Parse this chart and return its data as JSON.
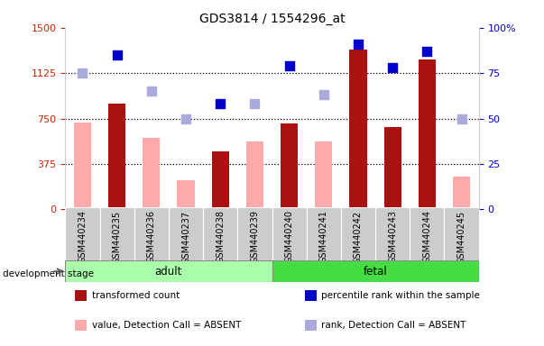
{
  "title": "GDS3814 / 1554296_at",
  "samples": [
    "GSM440234",
    "GSM440235",
    "GSM440236",
    "GSM440237",
    "GSM440238",
    "GSM440239",
    "GSM440240",
    "GSM440241",
    "GSM440242",
    "GSM440243",
    "GSM440244",
    "GSM440245"
  ],
  "bar_present_values": [
    null,
    870,
    null,
    null,
    480,
    null,
    710,
    null,
    1320,
    680,
    1240,
    null
  ],
  "bar_absent_values": [
    720,
    null,
    590,
    240,
    null,
    560,
    null,
    560,
    null,
    null,
    null,
    270
  ],
  "dot_present_ranks": [
    null,
    85,
    null,
    null,
    58,
    null,
    79,
    null,
    91,
    78,
    87,
    null
  ],
  "dot_absent_ranks": [
    75,
    null,
    65,
    50,
    null,
    58,
    null,
    63,
    null,
    null,
    null,
    50
  ],
  "groups": [
    "adult",
    "adult",
    "adult",
    "adult",
    "adult",
    "adult",
    "fetal",
    "fetal",
    "fetal",
    "fetal",
    "fetal",
    "fetal"
  ],
  "ylim_left": [
    0,
    1500
  ],
  "ylim_right": [
    0,
    100
  ],
  "yticks_left": [
    0,
    375,
    750,
    1125,
    1500
  ],
  "yticks_right": [
    0,
    25,
    50,
    75,
    100
  ],
  "hlines": [
    375,
    750,
    1125
  ],
  "bar_present_color": "#aa1111",
  "bar_absent_color": "#ffaaaa",
  "dot_present_color": "#0000cc",
  "dot_absent_color": "#aaaadd",
  "adult_color": "#aaffaa",
  "fetal_color": "#44dd44",
  "ylabel_left_color": "#cc2200",
  "ylabel_right_color": "#0000cc",
  "bar_width": 0.5,
  "dot_size": 55,
  "legend_items": [
    {
      "label": "transformed count",
      "color": "#aa1111"
    },
    {
      "label": "percentile rank within the sample",
      "color": "#0000cc"
    },
    {
      "label": "value, Detection Call = ABSENT",
      "color": "#ffaaaa"
    },
    {
      "label": "rank, Detection Call = ABSENT",
      "color": "#aaaadd"
    }
  ]
}
